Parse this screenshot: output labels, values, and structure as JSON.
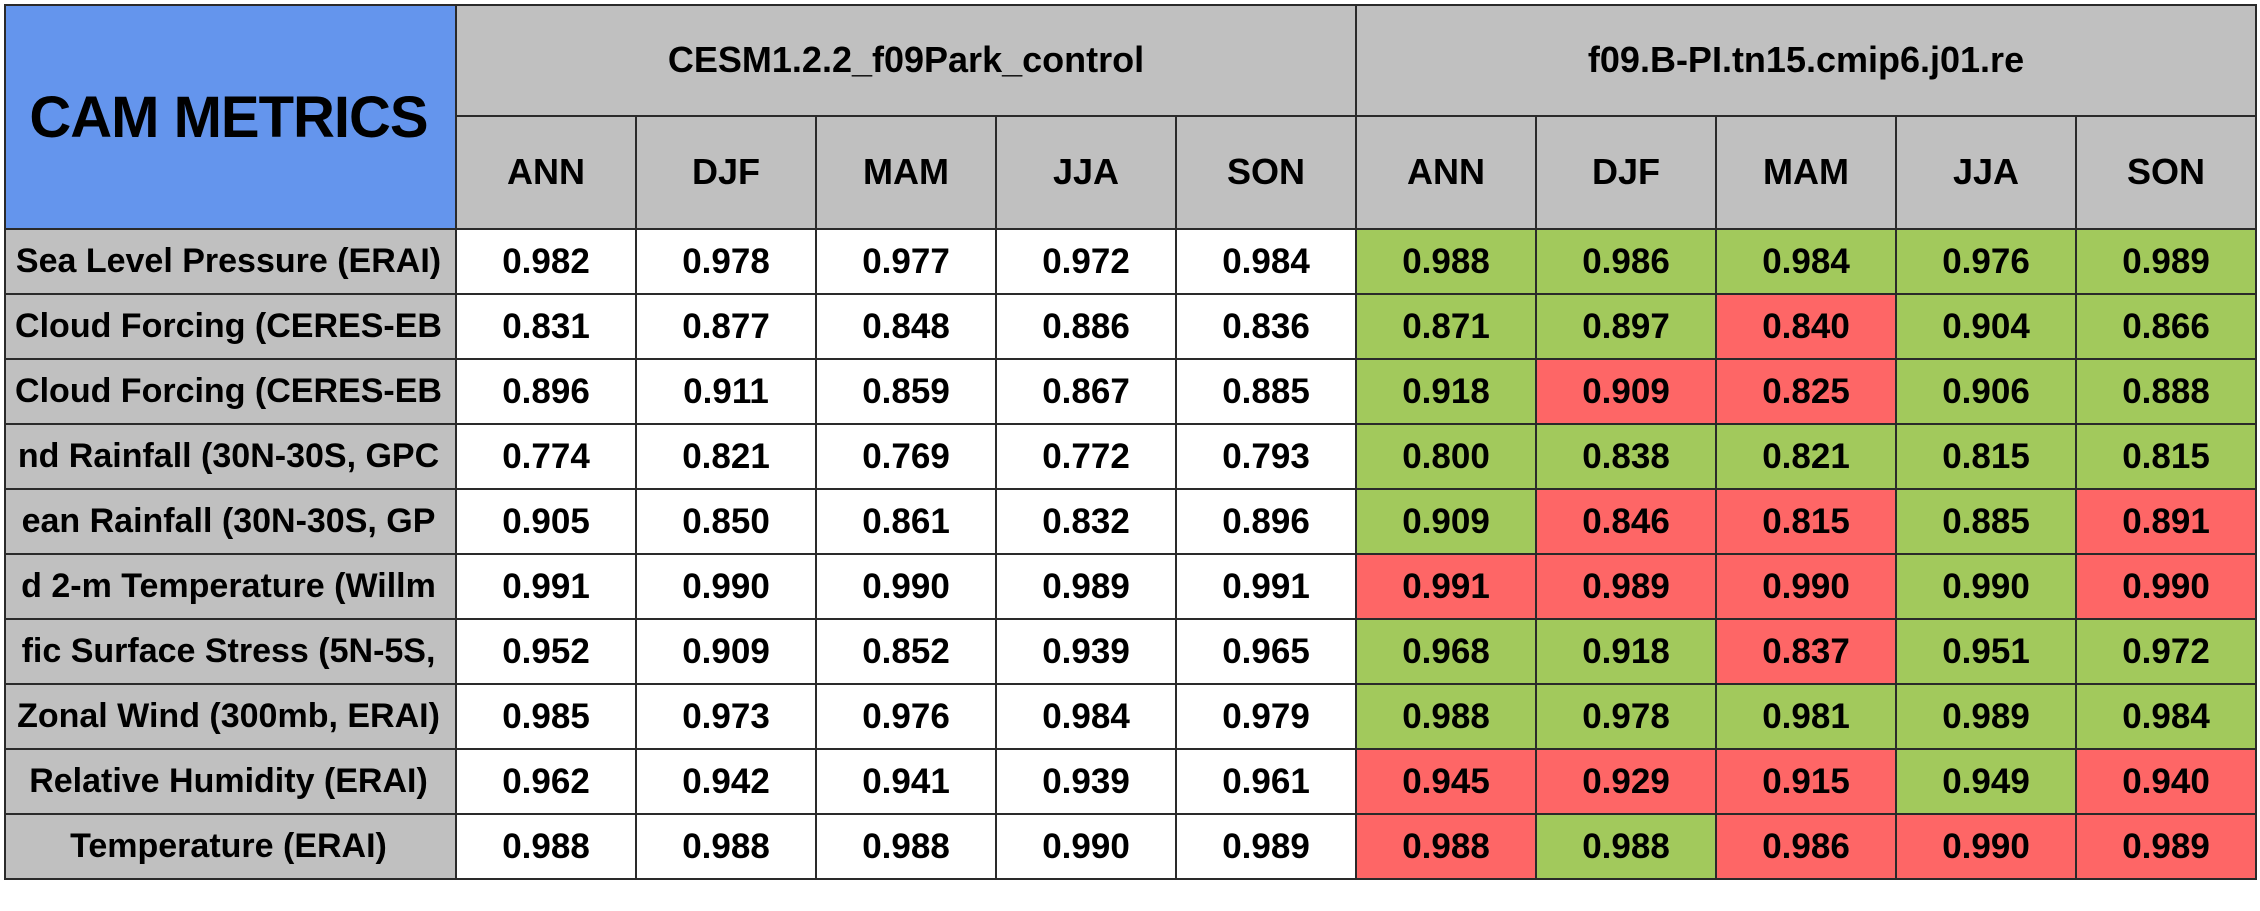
{
  "title": "CAM METRICS",
  "cases": [
    {
      "name": "CESM1.2.2_f09Park_control"
    },
    {
      "name": "f09.B-PI.tn15.cmip6.j01.re"
    }
  ],
  "seasons": [
    "ANN",
    "DJF",
    "MAM",
    "JJA",
    "SON"
  ],
  "colors": {
    "title_bg": "#6495ed",
    "header_bg": "#c0c0c0",
    "better": "#a2c95c",
    "worse": "#fe6666",
    "neutral": "#ffffff"
  },
  "rows": [
    {
      "label": "Sea Level Pressure (ERAI)",
      "control": [
        "0.982",
        "0.978",
        "0.977",
        "0.972",
        "0.984"
      ],
      "test": [
        "0.988",
        "0.986",
        "0.984",
        "0.976",
        "0.989"
      ],
      "status": [
        "better",
        "better",
        "better",
        "better",
        "better"
      ]
    },
    {
      "label": "Cloud Forcing (CERES-EB",
      "control": [
        "0.831",
        "0.877",
        "0.848",
        "0.886",
        "0.836"
      ],
      "test": [
        "0.871",
        "0.897",
        "0.840",
        "0.904",
        "0.866"
      ],
      "status": [
        "better",
        "better",
        "worse",
        "better",
        "better"
      ]
    },
    {
      "label": "Cloud Forcing (CERES-EB",
      "control": [
        "0.896",
        "0.911",
        "0.859",
        "0.867",
        "0.885"
      ],
      "test": [
        "0.918",
        "0.909",
        "0.825",
        "0.906",
        "0.888"
      ],
      "status": [
        "better",
        "worse",
        "worse",
        "better",
        "better"
      ]
    },
    {
      "label": "nd Rainfall (30N-30S, GPC",
      "control": [
        "0.774",
        "0.821",
        "0.769",
        "0.772",
        "0.793"
      ],
      "test": [
        "0.800",
        "0.838",
        "0.821",
        "0.815",
        "0.815"
      ],
      "status": [
        "better",
        "better",
        "better",
        "better",
        "better"
      ]
    },
    {
      "label": "ean Rainfall (30N-30S, GP",
      "control": [
        "0.905",
        "0.850",
        "0.861",
        "0.832",
        "0.896"
      ],
      "test": [
        "0.909",
        "0.846",
        "0.815",
        "0.885",
        "0.891"
      ],
      "status": [
        "better",
        "worse",
        "worse",
        "better",
        "worse"
      ]
    },
    {
      "label": "d 2-m Temperature (Willm",
      "control": [
        "0.991",
        "0.990",
        "0.990",
        "0.989",
        "0.991"
      ],
      "test": [
        "0.991",
        "0.989",
        "0.990",
        "0.990",
        "0.990"
      ],
      "status": [
        "worse",
        "worse",
        "worse",
        "better",
        "worse"
      ]
    },
    {
      "label": "fic Surface Stress (5N-5S,",
      "control": [
        "0.952",
        "0.909",
        "0.852",
        "0.939",
        "0.965"
      ],
      "test": [
        "0.968",
        "0.918",
        "0.837",
        "0.951",
        "0.972"
      ],
      "status": [
        "better",
        "better",
        "worse",
        "better",
        "better"
      ]
    },
    {
      "label": "Zonal Wind (300mb, ERAI)",
      "control": [
        "0.985",
        "0.973",
        "0.976",
        "0.984",
        "0.979"
      ],
      "test": [
        "0.988",
        "0.978",
        "0.981",
        "0.989",
        "0.984"
      ],
      "status": [
        "better",
        "better",
        "better",
        "better",
        "better"
      ]
    },
    {
      "label": "Relative Humidity (ERAI)",
      "control": [
        "0.962",
        "0.942",
        "0.941",
        "0.939",
        "0.961"
      ],
      "test": [
        "0.945",
        "0.929",
        "0.915",
        "0.949",
        "0.940"
      ],
      "status": [
        "worse",
        "worse",
        "worse",
        "better",
        "worse"
      ]
    },
    {
      "label": "Temperature (ERAI)",
      "control": [
        "0.988",
        "0.988",
        "0.988",
        "0.990",
        "0.989"
      ],
      "test": [
        "0.988",
        "0.988",
        "0.986",
        "0.990",
        "0.989"
      ],
      "status": [
        "worse",
        "better",
        "worse",
        "worse",
        "worse"
      ]
    }
  ]
}
